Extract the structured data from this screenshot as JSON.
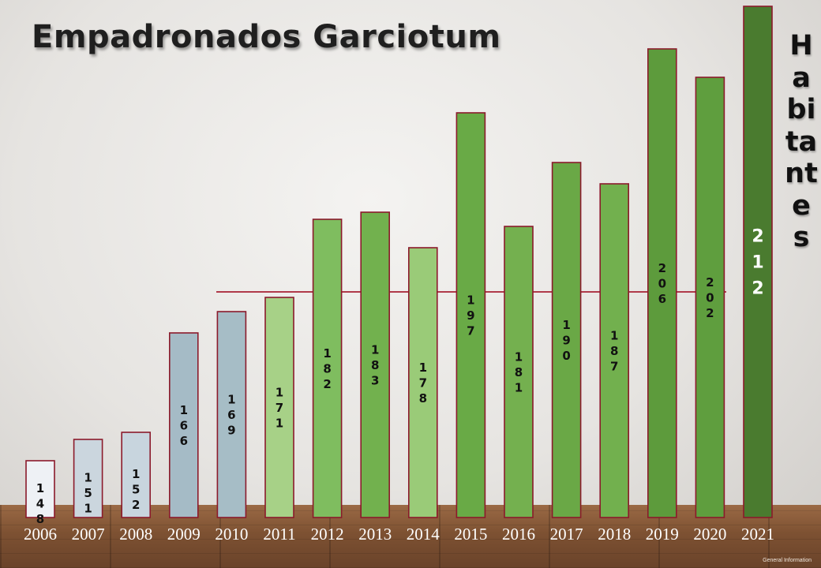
{
  "chart_data": {
    "type": "bar",
    "title": "Empadronados Garciotum",
    "ylabel": "Habitantes",
    "xlabel": "",
    "categories": [
      "2006",
      "2007",
      "2008",
      "2009",
      "2010",
      "2011",
      "2012",
      "2013",
      "2014",
      "2015",
      "2016",
      "2017",
      "2018",
      "2019",
      "2020",
      "2021"
    ],
    "values": [
      148,
      151,
      152,
      166,
      169,
      171,
      182,
      183,
      178,
      197,
      181,
      190,
      187,
      206,
      202,
      212
    ],
    "bar_colors": [
      "#eef1f5",
      "#cbd6de",
      "#c8d5de",
      "#a5bbc6",
      "#a6bdc6",
      "#a7d187",
      "#7fbd5f",
      "#72b14e",
      "#9acb78",
      "#69aa46",
      "#74b04f",
      "#6aa846",
      "#72b04e",
      "#5d9b3c",
      "#5f9e3e",
      "#4a7b2f"
    ],
    "bar_border_color": "#8b1a2b",
    "reference_line": {
      "color": "#b03a4a"
    },
    "grid": false,
    "legend": "none"
  },
  "footer_note": "General Information"
}
